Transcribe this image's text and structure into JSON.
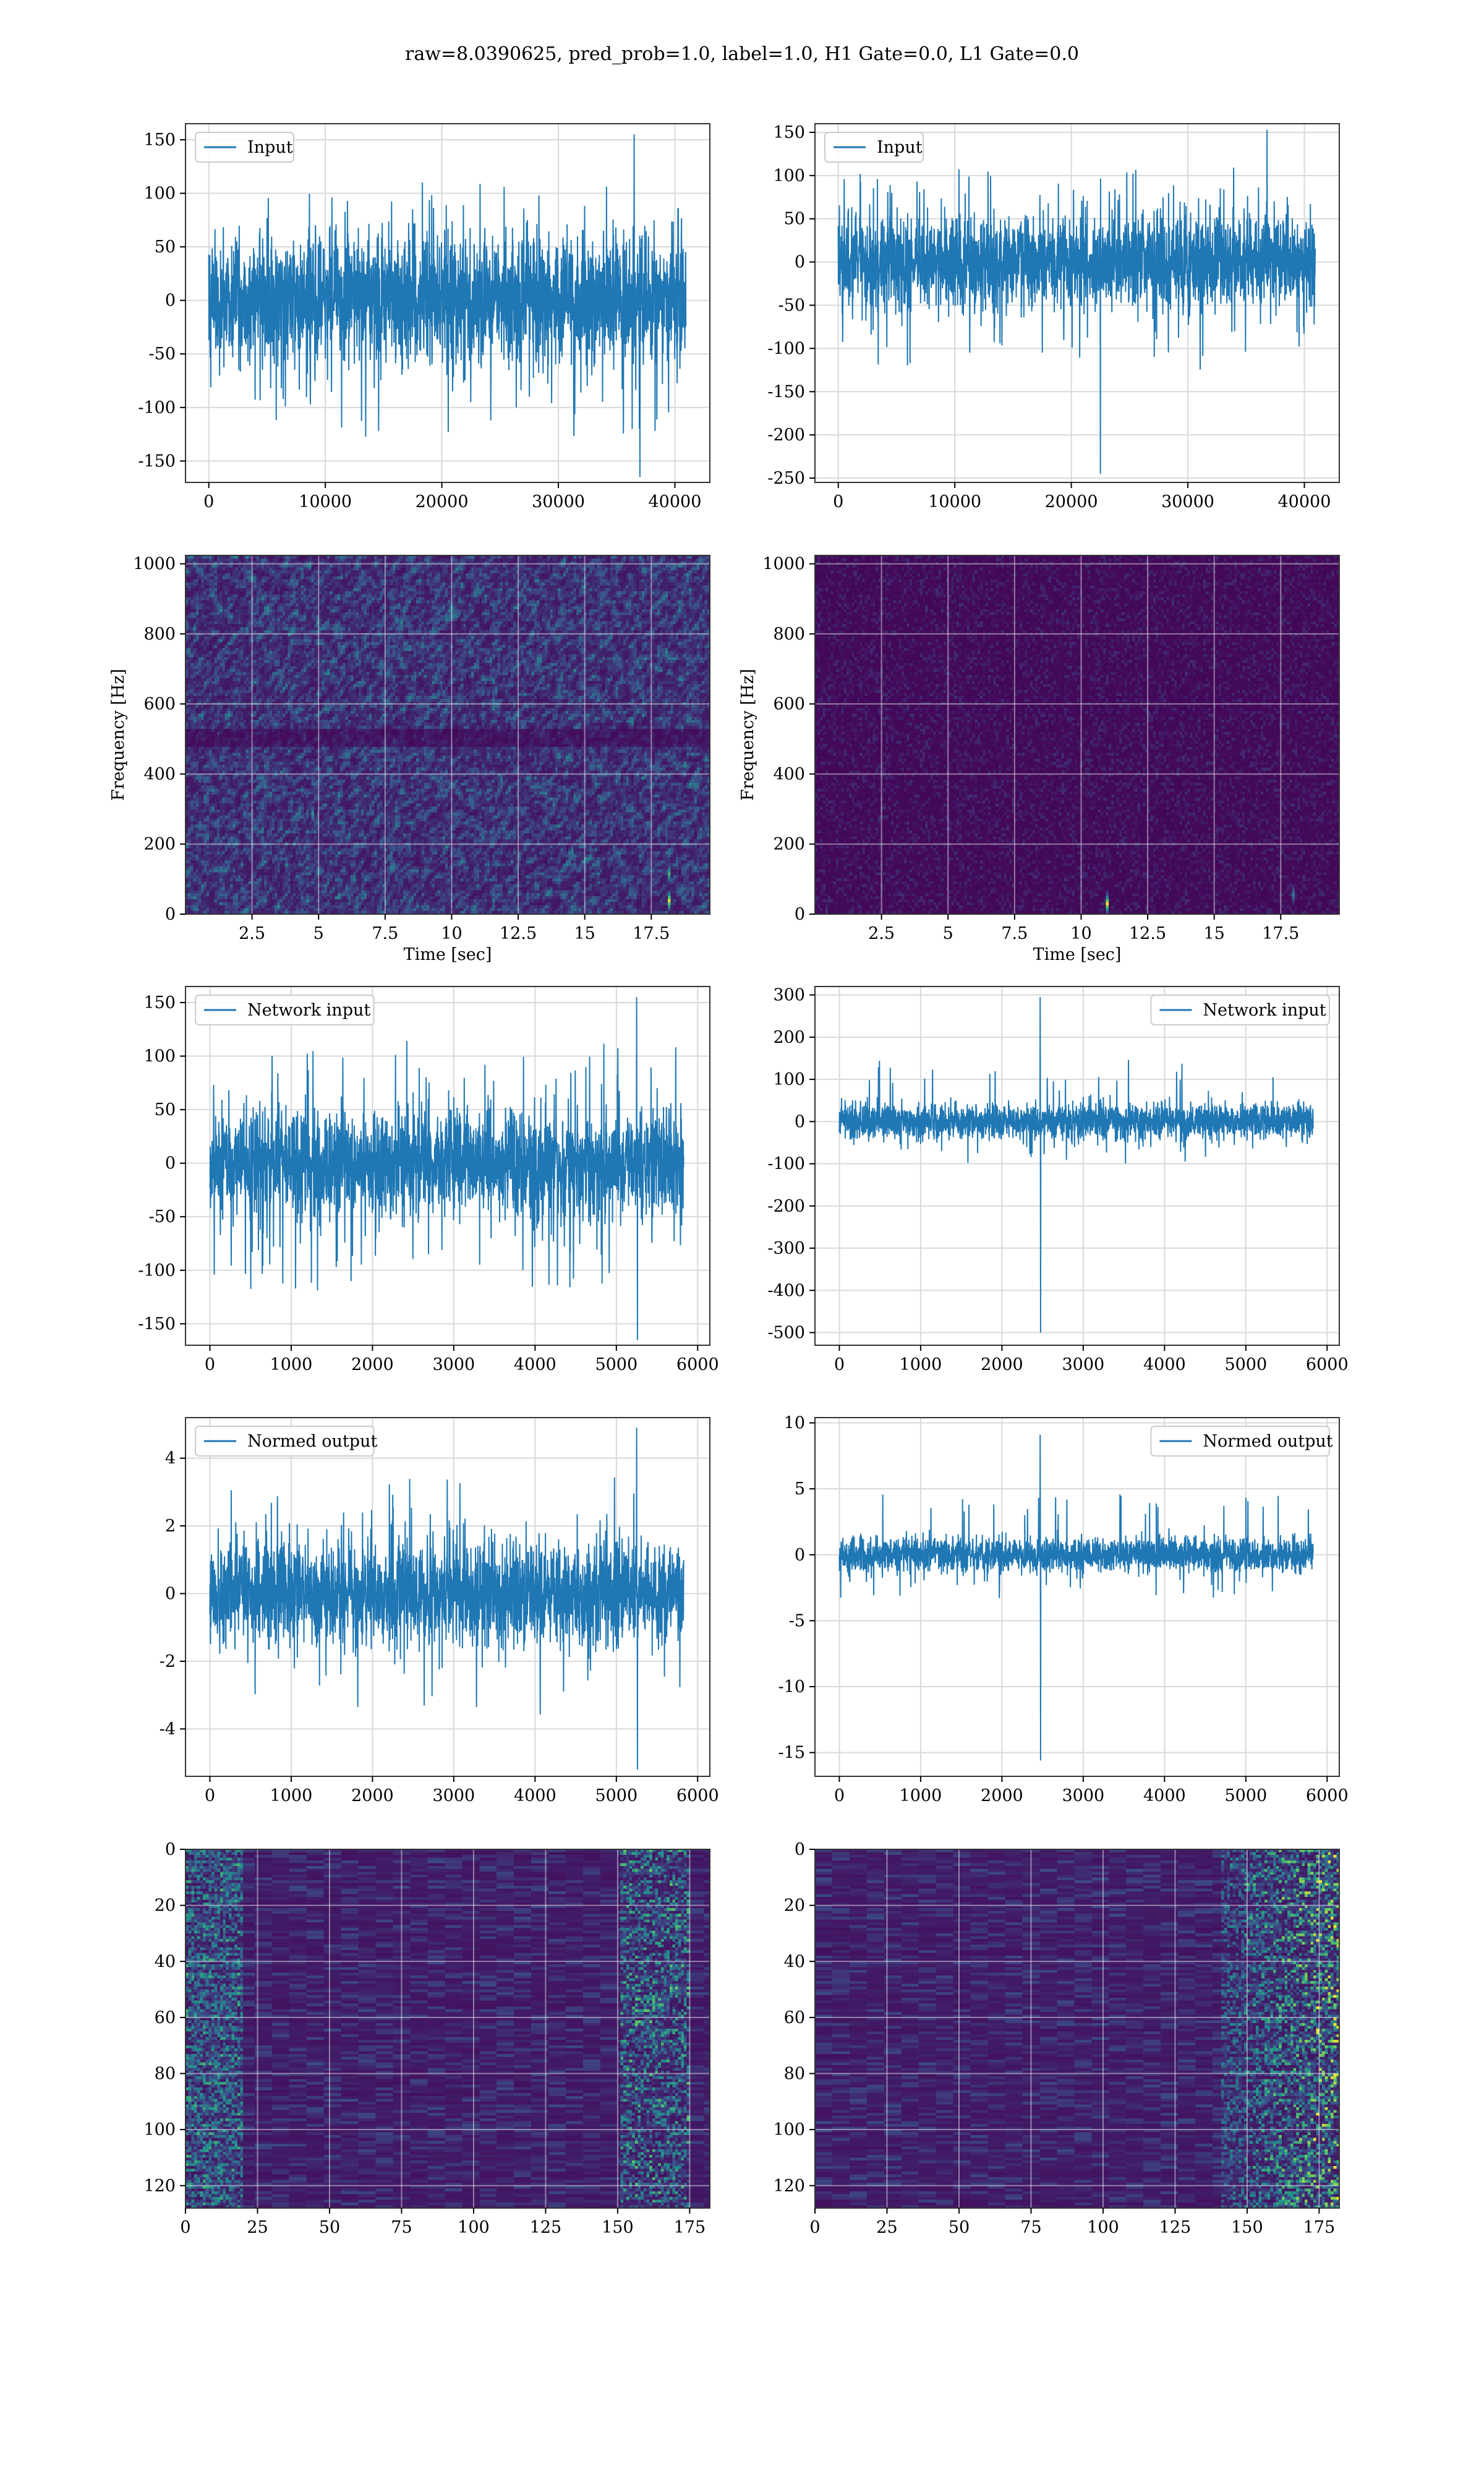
{
  "figure": {
    "suptitle": "raw=8.0390625, pred_prob=1.0, label=1.0, H1 Gate=0.0, L1 Gate=0.0"
  },
  "colors": {
    "line": "#1f77b4",
    "grid": "#d9d9d9",
    "viridis_low": "#440154",
    "viridis_mid": "#21918c",
    "viridis_high": "#fde725"
  },
  "chart_data": [
    {
      "id": "h1-input",
      "type": "line",
      "column": 0,
      "row": 0,
      "legend": [
        "Input"
      ],
      "legend_loc": "upper-left",
      "xlim": [
        -2000,
        43000
      ],
      "ylim": [
        -170,
        165
      ],
      "xticks": [
        0,
        10000,
        20000,
        30000,
        40000
      ],
      "yticks": [
        -150,
        -100,
        -50,
        0,
        50,
        100,
        150
      ],
      "signal": {
        "n": 40960,
        "band": 55,
        "max_noise": 110,
        "min_noise": -130,
        "spikes": [
          {
            "x": 36500,
            "y": 155
          },
          {
            "x": 37000,
            "y": -165
          }
        ]
      }
    },
    {
      "id": "l1-input",
      "type": "line",
      "column": 1,
      "row": 0,
      "legend": [
        "Input"
      ],
      "legend_loc": "upper-left",
      "xlim": [
        -2000,
        43000
      ],
      "ylim": [
        -255,
        160
      ],
      "xticks": [
        0,
        10000,
        20000,
        30000,
        40000
      ],
      "yticks": [
        -250,
        -200,
        -150,
        -100,
        -50,
        0,
        50,
        100,
        150
      ],
      "signal": {
        "n": 40960,
        "band": 50,
        "max_noise": 110,
        "min_noise": -125,
        "spikes": [
          {
            "x": 22500,
            "y": -245
          },
          {
            "x": 36800,
            "y": 153
          }
        ]
      }
    },
    {
      "id": "h1-spectrogram",
      "type": "heatmap",
      "column": 0,
      "row": 1,
      "xlabel": "Time [sec]",
      "ylabel": "Frequency [Hz]",
      "xlim": [
        0,
        19.7
      ],
      "ylim": [
        0,
        1024
      ],
      "xticks": [
        2.5,
        5.0,
        7.5,
        10.0,
        12.5,
        15.0,
        17.5
      ],
      "yticks": [
        0,
        200,
        400,
        600,
        800,
        1000
      ],
      "intensity": "noisy",
      "hotspots": [
        {
          "t": 18.1,
          "f": 40,
          "v": 0.95
        },
        {
          "t": 18.1,
          "f": 120,
          "v": 0.65
        },
        {
          "t": 4.7,
          "f": 290,
          "v": 0.5
        }
      ]
    },
    {
      "id": "l1-spectrogram",
      "type": "heatmap",
      "column": 1,
      "row": 1,
      "xlabel": "Time [sec]",
      "ylabel": "Frequency [Hz]",
      "xlim": [
        0,
        19.7
      ],
      "ylim": [
        0,
        1024
      ],
      "xticks": [
        2.5,
        5.0,
        7.5,
        10.0,
        12.5,
        15.0,
        17.5
      ],
      "yticks": [
        0,
        200,
        400,
        600,
        800,
        1000
      ],
      "intensity": "quiet",
      "hotspots": [
        {
          "t": 10.9,
          "f": 35,
          "v": 1.0
        },
        {
          "t": 17.9,
          "f": 60,
          "v": 0.4
        }
      ]
    },
    {
      "id": "h1-network-input",
      "type": "line",
      "column": 0,
      "row": 2,
      "legend": [
        "Network input"
      ],
      "legend_loc": "upper-left",
      "xlim": [
        -300,
        6150
      ],
      "ylim": [
        -170,
        165
      ],
      "xticks": [
        0,
        1000,
        2000,
        3000,
        4000,
        5000,
        6000
      ],
      "yticks": [
        -150,
        -100,
        -50,
        0,
        50,
        100,
        150
      ],
      "signal": {
        "n": 5830,
        "band": 45,
        "max_noise": 115,
        "min_noise": -120,
        "spikes": [
          {
            "x": 5250,
            "y": 155
          },
          {
            "x": 5260,
            "y": -165
          }
        ]
      }
    },
    {
      "id": "l1-network-input",
      "type": "line",
      "column": 1,
      "row": 2,
      "legend": [
        "Network input"
      ],
      "legend_loc": "upper-right",
      "xlim": [
        -300,
        6150
      ],
      "ylim": [
        -530,
        320
      ],
      "xticks": [
        0,
        1000,
        2000,
        3000,
        4000,
        5000,
        6000
      ],
      "yticks": [
        -500,
        -400,
        -300,
        -200,
        -100,
        0,
        100,
        200,
        300
      ],
      "signal": {
        "n": 5830,
        "band": 40,
        "max_noise": 150,
        "min_noise": -100,
        "spikes": [
          {
            "x": 2470,
            "y": 295
          },
          {
            "x": 2475,
            "y": -500
          }
        ]
      }
    },
    {
      "id": "h1-normed-output",
      "type": "line",
      "column": 0,
      "row": 3,
      "legend": [
        "Normed output"
      ],
      "legend_loc": "upper-left",
      "xlim": [
        -300,
        6150
      ],
      "ylim": [
        -5.4,
        5.2
      ],
      "xticks": [
        0,
        1000,
        2000,
        3000,
        4000,
        5000,
        6000
      ],
      "yticks": [
        -4,
        -2,
        0,
        2,
        4
      ],
      "signal": {
        "n": 5830,
        "band": 1.4,
        "max_noise": 3.5,
        "min_noise": -3.6,
        "spikes": [
          {
            "x": 5250,
            "y": 4.9
          },
          {
            "x": 5260,
            "y": -5.2
          }
        ]
      }
    },
    {
      "id": "l1-normed-output",
      "type": "line",
      "column": 1,
      "row": 3,
      "legend": [
        "Normed output"
      ],
      "legend_loc": "upper-right",
      "xlim": [
        -300,
        6150
      ],
      "ylim": [
        -16.8,
        10.4
      ],
      "xticks": [
        0,
        1000,
        2000,
        3000,
        4000,
        5000,
        6000
      ],
      "yticks": [
        -15,
        -10,
        -5,
        0,
        5,
        10
      ],
      "signal": {
        "n": 5830,
        "band": 1.2,
        "max_noise": 4.8,
        "min_noise": -3.3,
        "spikes": [
          {
            "x": 2470,
            "y": 9.1
          },
          {
            "x": 2475,
            "y": -15.6
          }
        ]
      }
    },
    {
      "id": "h1-feature-map",
      "type": "heatmap",
      "column": 0,
      "row": 4,
      "xlim": [
        0,
        182
      ],
      "ylim": [
        128,
        0
      ],
      "xticks": [
        0,
        25,
        50,
        75,
        100,
        125,
        150,
        175
      ],
      "yticks": [
        0,
        20,
        40,
        60,
        80,
        100,
        120
      ],
      "intensity": "features-left"
    },
    {
      "id": "l1-feature-map",
      "type": "heatmap",
      "column": 1,
      "row": 4,
      "xlim": [
        0,
        182
      ],
      "ylim": [
        128,
        0
      ],
      "xticks": [
        0,
        25,
        50,
        75,
        100,
        125,
        150,
        175
      ],
      "yticks": [
        0,
        20,
        40,
        60,
        80,
        100,
        120
      ],
      "intensity": "features-right"
    }
  ]
}
